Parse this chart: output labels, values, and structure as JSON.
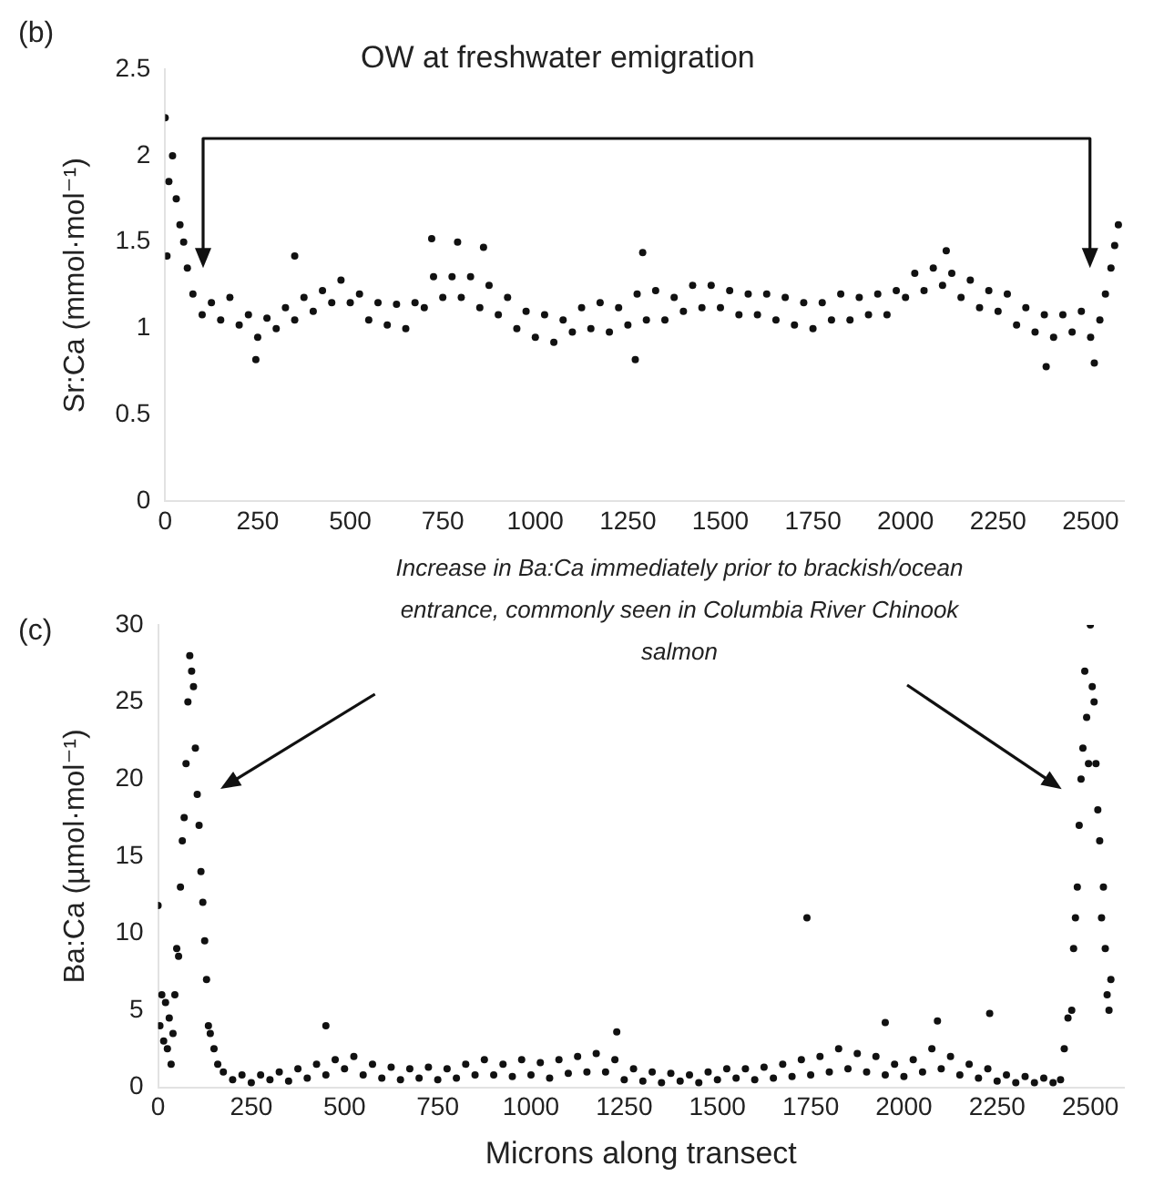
{
  "chart_data": [
    {
      "type": "scatter",
      "ylabel": "Sr:Ca (mmol·mol⁻¹)",
      "annotations": [
        "(b)",
        "OW at freshwater emigration"
      ],
      "xlim": [
        0,
        2590
      ],
      "xticks": [
        0,
        250,
        500,
        750,
        1000,
        1250,
        1500,
        1750,
        2000,
        2250,
        2500
      ],
      "ylim": [
        0,
        2.5
      ],
      "yticks": [
        0,
        0.5,
        1,
        1.5,
        2,
        2.5
      ],
      "grid": false,
      "legend": false,
      "marker": "circle",
      "series": [
        {
          "color": "#111111",
          "x": [
            0,
            10,
            20,
            30,
            40,
            50,
            60,
            75,
            100,
            125,
            150,
            175,
            200,
            225,
            250,
            275,
            300,
            325,
            350,
            375,
            400,
            425,
            450,
            475,
            500,
            525,
            550,
            575,
            600,
            625,
            650,
            675,
            700,
            725,
            750,
            775,
            800,
            825,
            850,
            875,
            900,
            925,
            950,
            975,
            1000,
            1025,
            1050,
            1075,
            1100,
            1125,
            1150,
            1175,
            1200,
            1225,
            1250,
            1275,
            1300,
            1325,
            1350,
            1375,
            1400,
            1425,
            1450,
            1475,
            1500,
            1525,
            1550,
            1575,
            1600,
            1625,
            1650,
            1675,
            1700,
            1725,
            1750,
            1775,
            1800,
            1825,
            1850,
            1875,
            1900,
            1925,
            1950,
            1975,
            2000,
            2025,
            2050,
            2075,
            2100,
            2125,
            2150,
            2175,
            2200,
            2225,
            2250,
            2275,
            2300,
            2325,
            2350,
            2375,
            2400,
            2425,
            2450,
            2475,
            2500,
            2525,
            2540,
            2555,
            2565,
            2575,
            720,
            790,
            245,
            1270,
            2380,
            2510,
            350,
            860,
            1290,
            2110,
            5
          ],
          "values": [
            2.22,
            1.85,
            2.0,
            1.75,
            1.6,
            1.5,
            1.35,
            1.2,
            1.08,
            1.15,
            1.05,
            1.18,
            1.02,
            1.08,
            0.95,
            1.06,
            1.0,
            1.12,
            1.05,
            1.18,
            1.1,
            1.22,
            1.15,
            1.28,
            1.15,
            1.2,
            1.05,
            1.15,
            1.02,
            1.14,
            1.0,
            1.15,
            1.12,
            1.3,
            1.18,
            1.3,
            1.18,
            1.3,
            1.12,
            1.25,
            1.08,
            1.18,
            1.0,
            1.1,
            0.95,
            1.08,
            0.92,
            1.05,
            0.98,
            1.12,
            1.0,
            1.15,
            0.98,
            1.12,
            1.02,
            1.2,
            1.05,
            1.22,
            1.05,
            1.18,
            1.1,
            1.25,
            1.12,
            1.25,
            1.12,
            1.22,
            1.08,
            1.2,
            1.08,
            1.2,
            1.05,
            1.18,
            1.02,
            1.15,
            1.0,
            1.15,
            1.05,
            1.2,
            1.05,
            1.18,
            1.08,
            1.2,
            1.08,
            1.22,
            1.18,
            1.32,
            1.22,
            1.35,
            1.25,
            1.32,
            1.18,
            1.28,
            1.12,
            1.22,
            1.1,
            1.2,
            1.02,
            1.12,
            0.98,
            1.08,
            0.95,
            1.08,
            0.98,
            1.1,
            0.95,
            1.05,
            1.2,
            1.35,
            1.48,
            1.6,
            1.52,
            1.5,
            0.82,
            0.82,
            0.78,
            0.8,
            1.42,
            1.47,
            1.44,
            1.45,
            1.42
          ]
        }
      ]
    },
    {
      "type": "scatter",
      "ylabel": "Ba:Ca (µmol·mol⁻¹)",
      "xlabel": "Microns along transect",
      "annotations": [
        "(c)",
        "Increase in Ba:Ca immediately prior to brackish/ocean entrance, commonly seen in Columbia River Chinook salmon"
      ],
      "xlim": [
        0,
        2590
      ],
      "xticks": [
        0,
        250,
        500,
        750,
        1000,
        1250,
        1500,
        1750,
        2000,
        2250,
        2500
      ],
      "ylim": [
        0,
        30
      ],
      "yticks": [
        0,
        5,
        10,
        15,
        20,
        25,
        30
      ],
      "grid": false,
      "legend": false,
      "marker": "circle",
      "series": [
        {
          "color": "#111111",
          "x": [
            0,
            5,
            10,
            15,
            20,
            25,
            30,
            35,
            40,
            45,
            50,
            55,
            60,
            65,
            70,
            75,
            80,
            85,
            90,
            95,
            100,
            105,
            110,
            115,
            120,
            125,
            130,
            135,
            140,
            150,
            160,
            175,
            200,
            225,
            250,
            275,
            300,
            325,
            350,
            375,
            400,
            425,
            450,
            475,
            500,
            525,
            550,
            575,
            600,
            625,
            650,
            675,
            700,
            725,
            750,
            775,
            800,
            825,
            850,
            875,
            900,
            925,
            950,
            975,
            1000,
            1025,
            1050,
            1075,
            1100,
            1125,
            1150,
            1175,
            1200,
            1225,
            1250,
            1275,
            1300,
            1325,
            1350,
            1375,
            1400,
            1425,
            1450,
            1475,
            1500,
            1525,
            1550,
            1575,
            1600,
            1625,
            1650,
            1675,
            1700,
            1725,
            1750,
            1775,
            1800,
            1825,
            1850,
            1875,
            1900,
            1925,
            1950,
            1975,
            2000,
            2025,
            2050,
            2075,
            2100,
            2125,
            2150,
            2175,
            2200,
            2225,
            2250,
            2275,
            2300,
            2325,
            2350,
            2375,
            2400,
            2420,
            2430,
            2440,
            2450,
            2455,
            2460,
            2465,
            2470,
            2475,
            2480,
            2485,
            2490,
            2495,
            2500,
            2505,
            2510,
            2515,
            2520,
            2525,
            2530,
            2535,
            2540,
            2545,
            2550,
            2555,
            450,
            1230,
            1740,
            1950,
            2090,
            2230
          ],
          "values": [
            11.8,
            4,
            6,
            3,
            5.5,
            2.5,
            4.5,
            1.5,
            3.5,
            6,
            9,
            8.5,
            13,
            16,
            17.5,
            21,
            25,
            28,
            27,
            26,
            22,
            19,
            17,
            14,
            12,
            9.5,
            7,
            4,
            3.5,
            2.5,
            1.5,
            1,
            0.5,
            0.8,
            0.3,
            0.8,
            0.5,
            1,
            0.4,
            1.2,
            0.6,
            1.5,
            0.8,
            1.8,
            1.2,
            2,
            0.8,
            1.5,
            0.6,
            1.3,
            0.5,
            1.2,
            0.6,
            1.3,
            0.5,
            1.2,
            0.6,
            1.5,
            0.8,
            1.8,
            0.8,
            1.5,
            0.7,
            1.8,
            0.8,
            1.6,
            0.6,
            1.8,
            0.9,
            2,
            1,
            2.2,
            1,
            1.8,
            0.5,
            1.2,
            0.4,
            1,
            0.3,
            0.9,
            0.4,
            0.8,
            0.3,
            1,
            0.5,
            1.2,
            0.6,
            1.2,
            0.5,
            1.3,
            0.6,
            1.5,
            0.7,
            1.8,
            0.8,
            2,
            1,
            2.5,
            1.2,
            2.2,
            1,
            2,
            0.8,
            1.5,
            0.7,
            1.8,
            1,
            2.5,
            1.2,
            2,
            0.8,
            1.5,
            0.6,
            1.2,
            0.4,
            0.8,
            0.3,
            0.7,
            0.3,
            0.6,
            0.3,
            0.5,
            2.5,
            4.5,
            5,
            9,
            11,
            13,
            17,
            20,
            22,
            27,
            24,
            21,
            30,
            26,
            25,
            21,
            18,
            16,
            11,
            13,
            9,
            6,
            5,
            7,
            4,
            3.6,
            11,
            4.2,
            4.3,
            4.8
          ]
        }
      ]
    }
  ]
}
